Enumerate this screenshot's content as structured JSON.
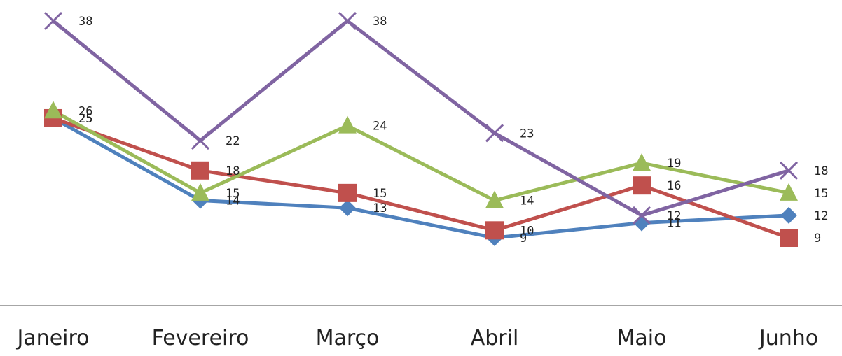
{
  "chart_data": {
    "type": "line",
    "categories": [
      "Janeiro",
      "Fevereiro",
      "Março",
      "Abril",
      "Maio",
      "Junho"
    ],
    "ylim": [
      0,
      38
    ],
    "grid": false,
    "legend": "none",
    "series": [
      {
        "values": [
          25,
          14,
          13,
          9,
          11,
          12
        ],
        "color": "#4f81bd",
        "marker": "diamond"
      },
      {
        "values": [
          25,
          18,
          15,
          10,
          16,
          9
        ],
        "color": "#c0504d",
        "marker": "square"
      },
      {
        "values": [
          26,
          15,
          24,
          14,
          19,
          15
        ],
        "color": "#9bbb59",
        "marker": "triangle"
      },
      {
        "values": [
          38,
          22,
          38,
          23,
          12,
          18
        ],
        "color": "#8064a2",
        "marker": "x"
      }
    ]
  }
}
